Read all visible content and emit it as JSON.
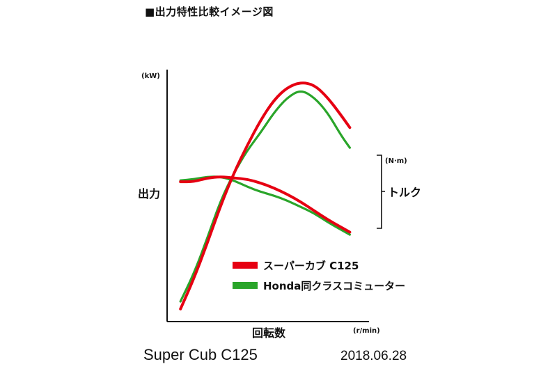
{
  "page": {
    "title": "■出力特性比較イメージ図",
    "footer_left": "Super Cub C125",
    "footer_right": "2018.06.28"
  },
  "chart_data": {
    "type": "line",
    "title": "■出力特性比較イメージ図",
    "xlabel": "回転数",
    "x_unit": "(r/min)",
    "ylabel": "出力",
    "y_unit": "(kW)",
    "y2label": "トルク",
    "y2_unit": "(N·m)",
    "grid": false,
    "legend_position": "bottom-right",
    "colors": {
      "red": "#e60012",
      "green": "#2aa52a",
      "axis": "#111111"
    },
    "series": [
      {
        "name": "スーパーカブ C125",
        "color": "#e60012",
        "kind": "power",
        "points": [
          [
            0.06,
            0.05
          ],
          [
            0.12,
            0.17
          ],
          [
            0.18,
            0.31
          ],
          [
            0.24,
            0.46
          ],
          [
            0.3,
            0.59
          ],
          [
            0.36,
            0.7
          ],
          [
            0.42,
            0.8
          ],
          [
            0.48,
            0.88
          ],
          [
            0.54,
            0.93
          ],
          [
            0.6,
            0.95
          ],
          [
            0.66,
            0.94
          ],
          [
            0.72,
            0.89
          ],
          [
            0.78,
            0.82
          ],
          [
            0.82,
            0.77
          ]
        ]
      },
      {
        "name": "Honda同クラスコミューター",
        "color": "#2aa52a",
        "kind": "power",
        "points": [
          [
            0.06,
            0.08
          ],
          [
            0.12,
            0.19
          ],
          [
            0.18,
            0.33
          ],
          [
            0.24,
            0.48
          ],
          [
            0.3,
            0.59
          ],
          [
            0.36,
            0.68
          ],
          [
            0.42,
            0.75
          ],
          [
            0.48,
            0.83
          ],
          [
            0.54,
            0.89
          ],
          [
            0.6,
            0.92
          ],
          [
            0.66,
            0.89
          ],
          [
            0.72,
            0.83
          ],
          [
            0.78,
            0.74
          ],
          [
            0.82,
            0.69
          ]
        ]
      },
      {
        "name": "スーパーカブ C125",
        "color": "#e60012",
        "kind": "torque",
        "points": [
          [
            0.06,
            0.555
          ],
          [
            0.12,
            0.555
          ],
          [
            0.18,
            0.57
          ],
          [
            0.24,
            0.575
          ],
          [
            0.3,
            0.57
          ],
          [
            0.36,
            0.565
          ],
          [
            0.42,
            0.55
          ],
          [
            0.48,
            0.53
          ],
          [
            0.54,
            0.505
          ],
          [
            0.6,
            0.475
          ],
          [
            0.66,
            0.44
          ],
          [
            0.72,
            0.405
          ],
          [
            0.78,
            0.375
          ],
          [
            0.82,
            0.355
          ]
        ]
      },
      {
        "name": "Honda同クラスコミューター",
        "color": "#2aa52a",
        "kind": "torque",
        "points": [
          [
            0.06,
            0.56
          ],
          [
            0.12,
            0.565
          ],
          [
            0.18,
            0.575
          ],
          [
            0.24,
            0.575
          ],
          [
            0.3,
            0.56
          ],
          [
            0.36,
            0.535
          ],
          [
            0.42,
            0.515
          ],
          [
            0.48,
            0.5
          ],
          [
            0.54,
            0.48
          ],
          [
            0.6,
            0.455
          ],
          [
            0.66,
            0.43
          ],
          [
            0.72,
            0.395
          ],
          [
            0.78,
            0.365
          ],
          [
            0.82,
            0.345
          ]
        ]
      }
    ],
    "legend": [
      {
        "label": "スーパーカブ C125",
        "color": "#e60012"
      },
      {
        "label": "Honda同クラスコミューター",
        "color": "#2aa52a"
      }
    ]
  }
}
